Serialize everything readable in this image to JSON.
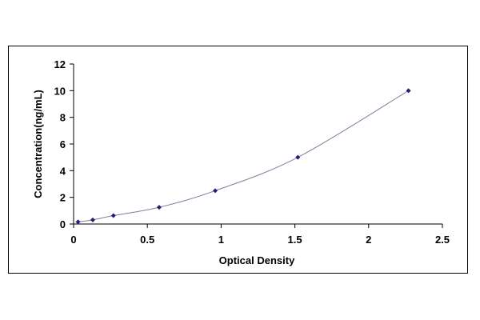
{
  "chart_data": {
    "type": "scatter",
    "title": "",
    "xlabel": "Optical Density",
    "ylabel": "Concentration(ng/mL)",
    "xlim": [
      0,
      2.5
    ],
    "ylim": [
      0,
      12
    ],
    "x_ticks": [
      "0",
      "0.5",
      "1",
      "1.5",
      "2",
      "2.5"
    ],
    "y_ticks": [
      "0",
      "2",
      "4",
      "6",
      "8",
      "10",
      "12"
    ],
    "grid": false,
    "legend": "none",
    "line_color": "#7f7f9f",
    "marker_color": "#1f1f7a",
    "series": [
      {
        "x": [
          0.03,
          0.13,
          0.27,
          0.58,
          0.96,
          1.52,
          2.27
        ],
        "y": [
          0.16,
          0.31,
          0.63,
          1.25,
          2.5,
          5,
          10
        ]
      }
    ]
  }
}
